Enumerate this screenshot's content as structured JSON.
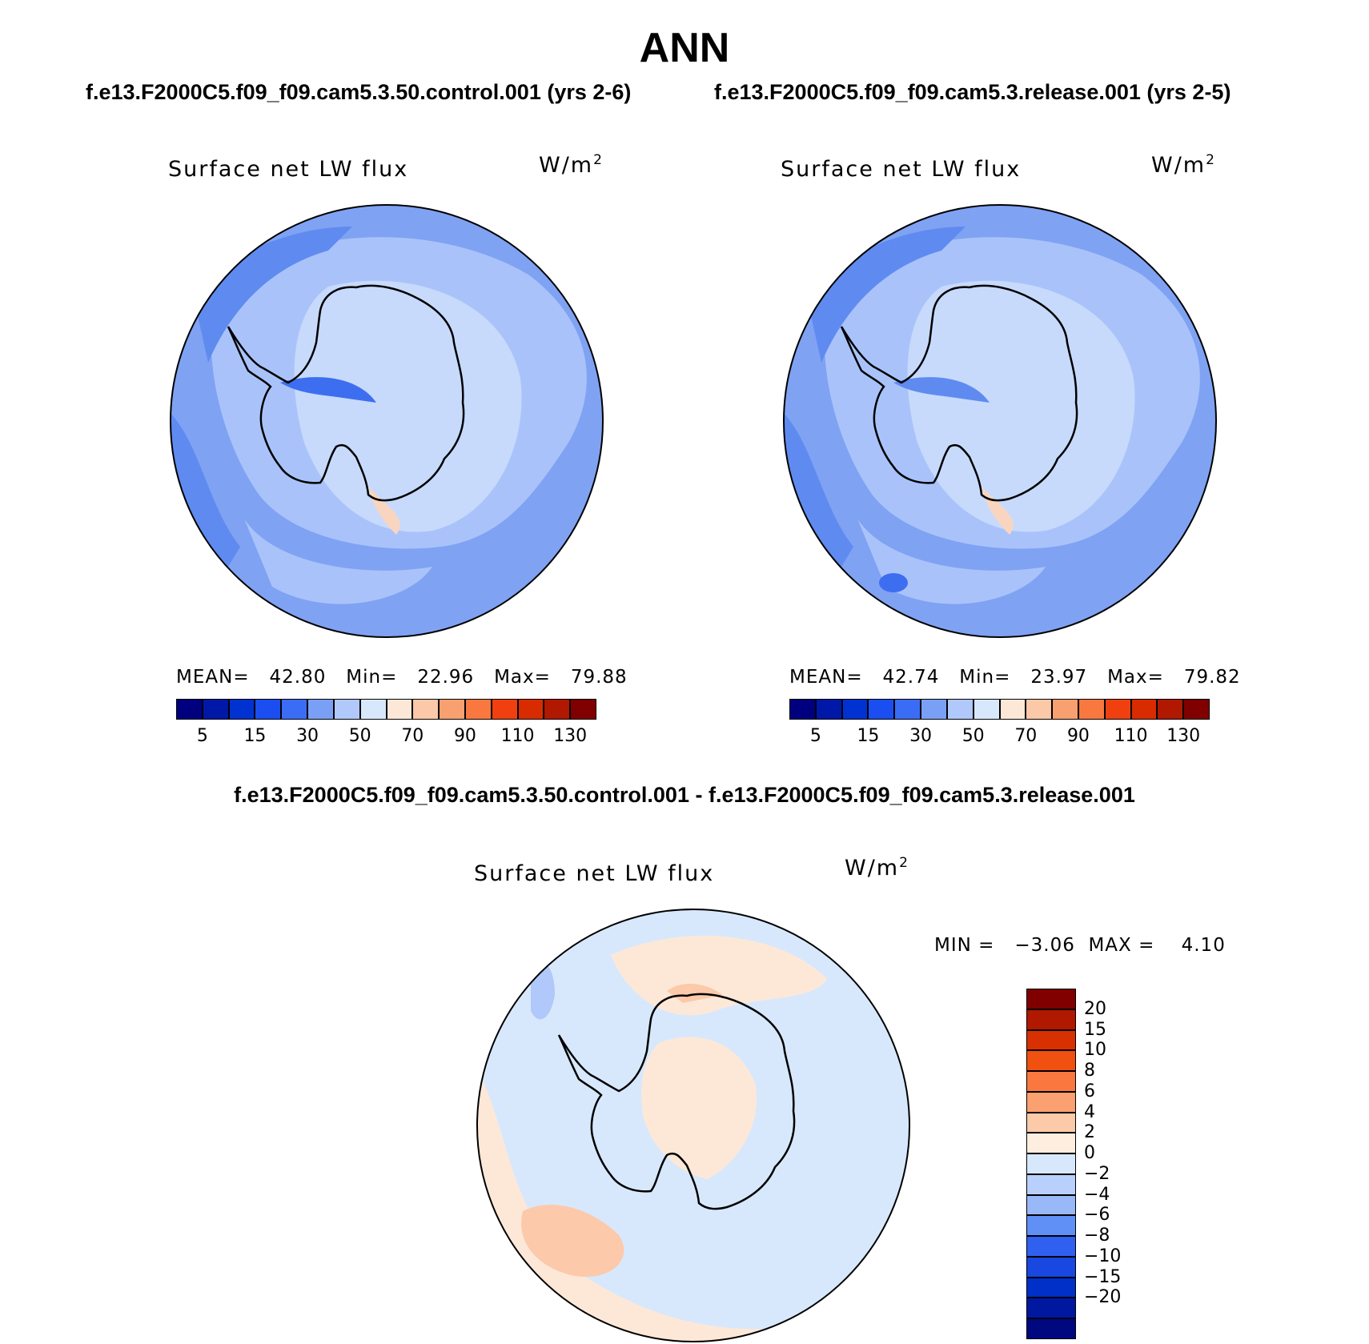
{
  "figure": {
    "title": "ANN",
    "left_case_title": "f.e13.F2000C5.f09_f09.cam5.3.50.control.001 (yrs 2-6)",
    "right_case_title": "f.e13.F2000C5.f09_f09.cam5.3.release.001 (yrs 2-5)",
    "diff_title": "f.e13.F2000C5.f09_f09.cam5.3.50.control.001 - f.e13.F2000C5.f09_f09.cam5.3.release.001"
  },
  "panels": [
    {
      "variable": "Surface net LW flux",
      "units_base": "W/m",
      "units_exp": "2",
      "stats_text": "MEAN=   42.80   Min=   22.96   Max=   79.88",
      "mean": 42.8,
      "min": 22.96,
      "max": 79.88
    },
    {
      "variable": "Surface net LW flux",
      "units_base": "W/m",
      "units_exp": "2",
      "stats_text": "MEAN=   42.74   Min=   23.97   Max=   79.82",
      "mean": 42.74,
      "min": 23.97,
      "max": 79.82
    },
    {
      "variable": "Surface net LW flux",
      "units_base": "W/m",
      "units_exp": "2",
      "stats_text": "MIN =   −3.06  MAX =    4.10",
      "min": -3.06,
      "max": 4.1
    }
  ],
  "colorbar_main": {
    "colors": [
      "#00007f",
      "#0018a8",
      "#0032d2",
      "#1a4ef0",
      "#3a6cf5",
      "#7aa0f5",
      "#b0c8fa",
      "#d8e8fc",
      "#fde8d8",
      "#fbc8a8",
      "#f8a070",
      "#f87840",
      "#f04010",
      "#d82c00",
      "#b01800",
      "#800000"
    ],
    "labels": [
      "5",
      "15",
      "30",
      "50",
      "70",
      "90",
      "110",
      "130"
    ]
  },
  "colorbar_diff": {
    "colors": [
      "#800000",
      "#b01800",
      "#d83000",
      "#f05010",
      "#fa7840",
      "#fba070",
      "#fccaa8",
      "#fdeee0",
      "#d8e8fc",
      "#b8d0fb",
      "#98b8f8",
      "#6090f5",
      "#3060f0",
      "#1848e0",
      "#0030c8",
      "#0018a0",
      "#00087f"
    ],
    "labels": [
      "20",
      "15",
      "10",
      "8",
      "6",
      "4",
      "2",
      "0",
      "−2",
      "−4",
      "−6",
      "−8",
      "−10",
      "−15",
      "−20"
    ]
  }
}
